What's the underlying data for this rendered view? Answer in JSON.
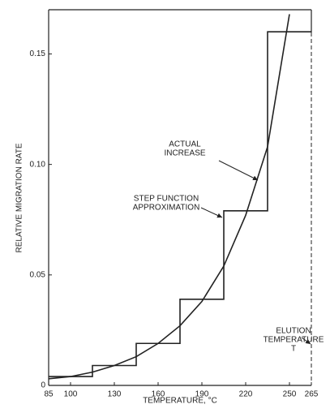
{
  "chart_data": {
    "type": "line",
    "xlabel": "TEMPERATURE,  °C",
    "ylabel": "RELATIVE MIGRATION RATE",
    "xlim": [
      85,
      265
    ],
    "xticks": [
      85,
      100,
      130,
      160,
      190,
      220,
      250,
      265
    ],
    "ylim": [
      0,
      0.17
    ],
    "yticks": [
      0,
      0.05,
      {
        "value": 0.1,
        "label": "0.10"
      },
      0.15
    ],
    "series": [
      {
        "step": true,
        "color": "#222222",
        "x": [
          85,
          115,
          145,
          175,
          205,
          235,
          265
        ],
        "values": [
          0.004,
          0.009,
          0.019,
          0.039,
          0.079,
          0.16,
          0.16
        ]
      },
      {
        "step": false,
        "color": "#222222",
        "x": [
          85,
          100,
          115,
          130,
          145,
          160,
          175,
          190,
          205,
          220,
          235,
          250
        ],
        "values": [
          0.003,
          0.004,
          0.006,
          0.009,
          0.013,
          0.019,
          0.027,
          0.038,
          0.054,
          0.077,
          0.108,
          0.168
        ]
      }
    ],
    "annotations": [
      {
        "lines": [
          "ACTUAL",
          "INCREASE"
        ]
      },
      {
        "lines": [
          "STEP FUNCTION",
          "APPROXIMATION"
        ]
      },
      {
        "lines": [
          "ELUTION",
          "TEMPERATURE",
          "T"
        ]
      }
    ]
  }
}
